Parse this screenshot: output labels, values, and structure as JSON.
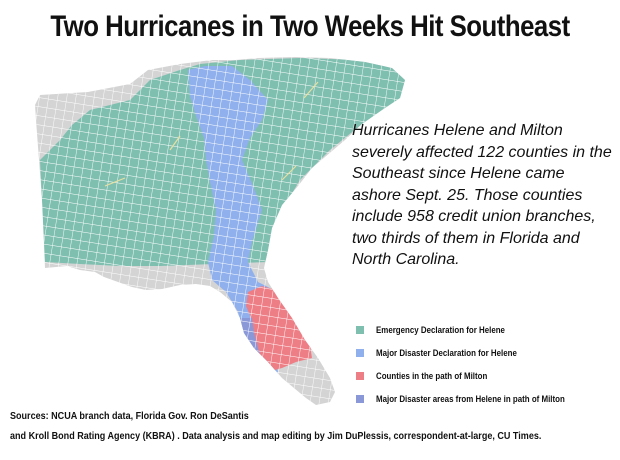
{
  "title": "Two Hurricanes in Two Weeks Hit Southeast",
  "summary": "Hurricanes Helene and Milton severely affected 122 counties in the Southeast since Helene came ashore Sept. 25. Those counties include 958 credit union branches, two thirds of them in Florida and North Carolina.",
  "legend": [
    {
      "label": "Emergency Declaration for Helene",
      "color": "#7fbfb0"
    },
    {
      "label": "Major Disaster Declaration for Helene",
      "color": "#8fb0ec"
    },
    {
      "label": "Counties in the path of Milton",
      "color": "#ee7e86"
    },
    {
      "label": "Major Disaster areas from Helene in path of Milton",
      "color": "#8a98d8"
    }
  ],
  "sources": {
    "line1": "Sources: NCUA branch data,  Florida Gov. Ron DeSantis",
    "line2": "and Kroll Bond Rating Agency (KBRA) . Data analysis and map editing by Jim DuPlessis, correspondent-at-large, CU Times."
  },
  "colors": {
    "unaffected": "#d4d4d4",
    "border": "#ffffff",
    "text": "#111111"
  }
}
